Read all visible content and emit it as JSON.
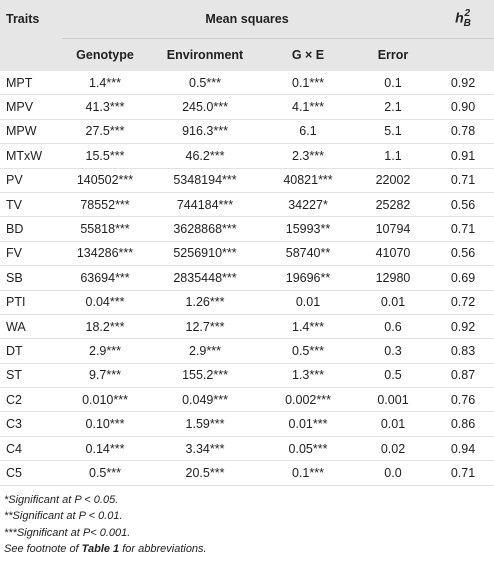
{
  "header": {
    "traits": "Traits",
    "group": "Mean squares",
    "heritability": {
      "base": "h",
      "sub": "B",
      "sup": "2"
    },
    "columns": [
      "Genotype",
      "Environment",
      "G × E",
      "Error"
    ]
  },
  "table": {
    "rows": [
      [
        "MPT",
        "1.4***",
        "0.5***",
        "0.1***",
        "0.1",
        "0.92"
      ],
      [
        "MPV",
        "41.3***",
        "245.0***",
        "4.1***",
        "2.1",
        "0.90"
      ],
      [
        "MPW",
        "27.5***",
        "916.3***",
        "6.1",
        "5.1",
        "0.78"
      ],
      [
        "MTxW",
        "15.5***",
        "46.2***",
        "2.3***",
        "1.1",
        "0.91"
      ],
      [
        "PV",
        "140502***",
        "5348194***",
        "40821***",
        "22002",
        "0.71"
      ],
      [
        "TV",
        "78552***",
        "744184***",
        "34227*",
        "25282",
        "0.56"
      ],
      [
        "BD",
        "55818***",
        "3628868***",
        "15993**",
        "10794",
        "0.71"
      ],
      [
        "FV",
        "134286***",
        "5256910***",
        "58740**",
        "41070",
        "0.56"
      ],
      [
        "SB",
        "63694***",
        "2835448***",
        "19696**",
        "12980",
        "0.69"
      ],
      [
        "PTI",
        "0.04***",
        "1.26***",
        "0.01",
        "0.01",
        "0.72"
      ],
      [
        "WA",
        "18.2***",
        "12.7***",
        "1.4***",
        "0.6",
        "0.92"
      ],
      [
        "DT",
        "2.9***",
        "2.9***",
        "0.5***",
        "0.3",
        "0.83"
      ],
      [
        "ST",
        "9.7***",
        "155.2***",
        "1.3***",
        "0.5",
        "0.87"
      ],
      [
        "C2",
        "0.010***",
        "0.049***",
        "0.002***",
        "0.001",
        "0.76"
      ],
      [
        "C3",
        "0.10***",
        "1.59***",
        "0.01***",
        "0.01",
        "0.86"
      ],
      [
        "C4",
        "0.14***",
        "3.34***",
        "0.05***",
        "0.02",
        "0.94"
      ],
      [
        "C5",
        "0.5***",
        "20.5***",
        "0.1***",
        "0.0",
        "0.71"
      ]
    ]
  },
  "footnotes": [
    "*Significant at P < 0.05.",
    "**Significant at P < 0.01.",
    "***Significant at P< 0.001.",
    {
      "before": "See footnote of ",
      "bold": "Table 1",
      "after": " for abbreviations."
    }
  ]
}
